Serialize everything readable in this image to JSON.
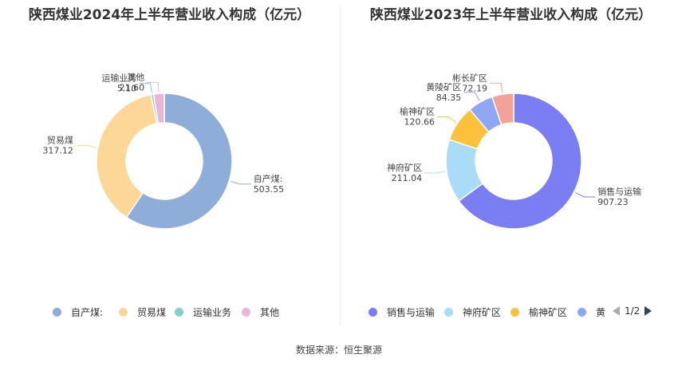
{
  "left": {
    "title": "陕西煤业2024年上半年营业收入构成（亿元）",
    "legend": [
      "自产煤:",
      "贸易煤",
      "运输业务",
      "其他"
    ]
  },
  "right": {
    "title": "陕西煤业2023年上半年营业收入构成（亿元）",
    "legend": [
      "销售与运输",
      "神府矿区",
      "榆神矿区",
      "黄"
    ],
    "pager": "1/2"
  },
  "source": "数据来源：恒生聚源",
  "chart_data": [
    {
      "type": "pie",
      "title": "陕西煤业2024年上半年营业收入构成（亿元）",
      "donut": true,
      "categories": [
        "自产煤:",
        "贸易煤",
        "运输业务",
        "其他"
      ],
      "values": [
        503.55,
        317.12,
        5.1,
        21.6
      ],
      "value_labels": [
        "503.55",
        "317.12",
        "5.10",
        "21.60"
      ],
      "colors": [
        "#8eadd9",
        "#fdd797",
        "#83cfcd",
        "#e8b7d7"
      ],
      "legend_position": "bottom"
    },
    {
      "type": "pie",
      "title": "陕西煤业2023年上半年营业收入构成（亿元）",
      "donut": true,
      "categories": [
        "销售与运输",
        "神府矿区",
        "榆神矿区",
        "黄陵矿区",
        "彬长矿区"
      ],
      "values": [
        907.23,
        211.04,
        120.66,
        84.35,
        72.19
      ],
      "value_labels": [
        "907.23",
        "211.04",
        "120.66",
        "84.35",
        "72.19"
      ],
      "colors": [
        "#7b7df2",
        "#aadcf7",
        "#fcc13c",
        "#8fa7f2",
        "#f3a29a"
      ],
      "legend_position": "bottom"
    }
  ]
}
